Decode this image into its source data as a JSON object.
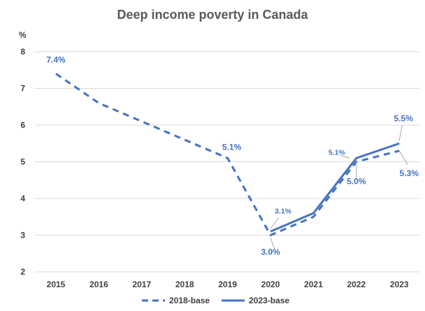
{
  "chart_data": {
    "type": "line",
    "title": "Deep income poverty in Canada",
    "ylabel": "%",
    "xlabel": "",
    "ylim": [
      2,
      8
    ],
    "yticks": [
      2,
      3,
      4,
      5,
      6,
      7,
      8
    ],
    "categories": [
      "2015",
      "2016",
      "2017",
      "2018",
      "2019",
      "2020",
      "2021",
      "2022",
      "2023"
    ],
    "grid": true,
    "legend_position": "bottom",
    "series": [
      {
        "name": "2018-base",
        "style": "dashed",
        "color": "#4472C4",
        "values": [
          7.4,
          6.6,
          6.1,
          5.6,
          5.1,
          3.0,
          3.5,
          5.0,
          5.3
        ],
        "labels": [
          "7.4%",
          null,
          null,
          null,
          "5.1%",
          "3.0%",
          null,
          "5.0%",
          "5.3%"
        ]
      },
      {
        "name": "2023-base",
        "style": "solid",
        "color": "#4472C4",
        "values": [
          null,
          null,
          null,
          null,
          null,
          3.1,
          3.6,
          5.1,
          5.5
        ],
        "labels": [
          null,
          null,
          null,
          null,
          null,
          "3.1%",
          null,
          "5.1%",
          "5.5%"
        ]
      }
    ]
  }
}
